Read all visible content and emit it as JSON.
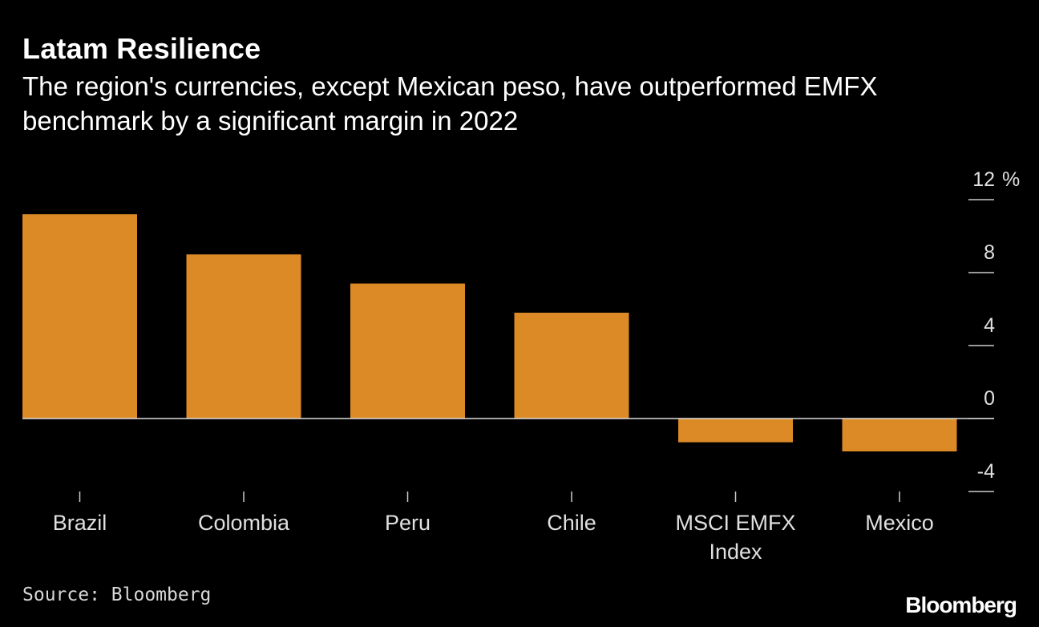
{
  "title": "Latam Resilience",
  "subtitle": "The region's currencies, except Mexican peso, have outperformed EMFX benchmark by a significant margin in 2022",
  "source": "Source: Bloomberg",
  "logo": "Bloomberg",
  "colors": {
    "background": "#000000",
    "bar": "#DB8A26",
    "text": "#ffffff",
    "axis": "#cccccc"
  },
  "chart_data": {
    "type": "bar",
    "categories": [
      [
        "Brazil"
      ],
      [
        "Colombia"
      ],
      [
        "Peru"
      ],
      [
        "Chile"
      ],
      [
        "MSCI EMFX",
        "Index"
      ],
      [
        "Mexico"
      ]
    ],
    "values": [
      11.2,
      9.0,
      7.4,
      5.8,
      -1.3,
      -1.8
    ],
    "unit": "%",
    "yticks": [
      -4,
      0,
      4,
      8,
      12
    ],
    "ytick_labels": [
      "-4",
      "0",
      "4",
      "8",
      "12"
    ],
    "ylim": [
      -4,
      12
    ],
    "grid": false,
    "axis_position": "right"
  }
}
